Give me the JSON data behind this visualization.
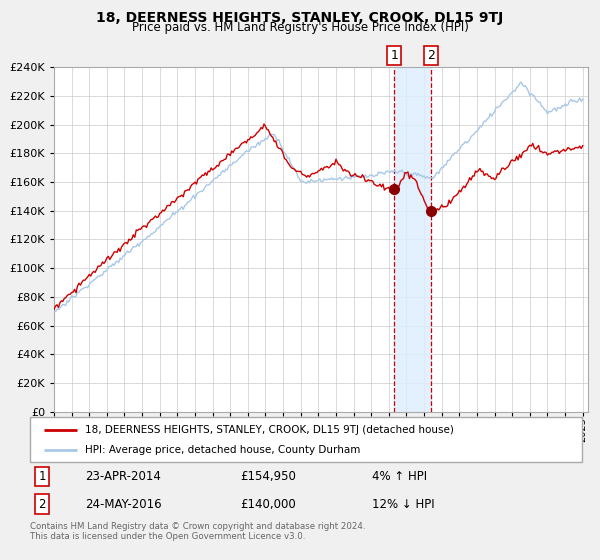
{
  "title": "18, DEERNESS HEIGHTS, STANLEY, CROOK, DL15 9TJ",
  "subtitle": "Price paid vs. HM Land Registry's House Price Index (HPI)",
  "legend_line1": "18, DEERNESS HEIGHTS, STANLEY, CROOK, DL15 9TJ (detached house)",
  "legend_line2": "HPI: Average price, detached house, County Durham",
  "transaction1_date": "23-APR-2014",
  "transaction1_price": 154950,
  "transaction1_pct": "4% ↑ HPI",
  "transaction2_date": "24-MAY-2016",
  "transaction2_price": 140000,
  "transaction2_pct": "12% ↓ HPI",
  "footnote": "Contains HM Land Registry data © Crown copyright and database right 2024.\nThis data is licensed under the Open Government Licence v3.0.",
  "hpi_color": "#a8c8e8",
  "price_color": "#cc0000",
  "marker_color": "#880000",
  "vline_color": "#cc0000",
  "shade_color": "#ddeeff",
  "bg_color": "#f0f0f0",
  "plot_bg": "#ffffff",
  "ylim": [
    0,
    240000
  ],
  "yticks": [
    0,
    20000,
    40000,
    60000,
    80000,
    100000,
    120000,
    140000,
    160000,
    180000,
    200000,
    220000,
    240000
  ],
  "transaction1_x": 2014.3,
  "transaction2_x": 2016.4
}
